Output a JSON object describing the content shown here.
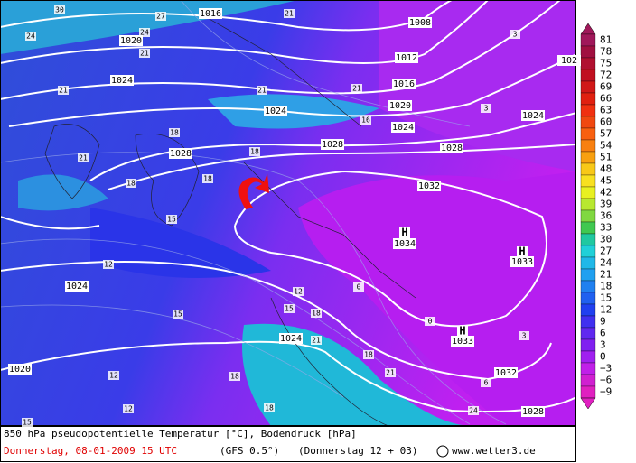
{
  "colorbar": {
    "labels": [
      "81",
      "78",
      "75",
      "72",
      "69",
      "66",
      "63",
      "60",
      "57",
      "54",
      "51",
      "48",
      "45",
      "42",
      "39",
      "36",
      "33",
      "30",
      "27",
      "24",
      "21",
      "18",
      "15",
      "12",
      "9",
      "6",
      "3",
      "0",
      "−3",
      "−6",
      "−9"
    ]
  },
  "map": {
    "isobar_labels": [
      "1016",
      "1020",
      "1024",
      "1008",
      "1012",
      "1016",
      "1020",
      "1024",
      "1024",
      "1028",
      "1028",
      "1032",
      "1028",
      "1024",
      "1024",
      "1024",
      "1020",
      "1032",
      "1028",
      "1034",
      "1033",
      "1033",
      "102"
    ],
    "temperature_labels": [
      "30",
      "24",
      "21",
      "18",
      "18",
      "15",
      "12",
      "15",
      "12",
      "15",
      "18",
      "21",
      "18",
      "12",
      "12",
      "15",
      "3",
      "3",
      "0",
      "0",
      "3",
      "6",
      "18",
      "21",
      "24",
      "18",
      "18",
      "21",
      "16",
      "21",
      "21",
      "27",
      "24",
      "21",
      "21",
      "18"
    ],
    "high_markers": [
      "H",
      "H",
      "H"
    ]
  },
  "footer": {
    "line1": "850 hPa pseudopotentielle Temperatur [°C],  Bodendruck [hPa]",
    "date": "Donnerstag, 08-01-2009  15 UTC",
    "model": "(GFS 0.5°)",
    "run": "(Donnerstag 12 + 03)",
    "copyright": "©",
    "site": "www.wetter3.de"
  }
}
